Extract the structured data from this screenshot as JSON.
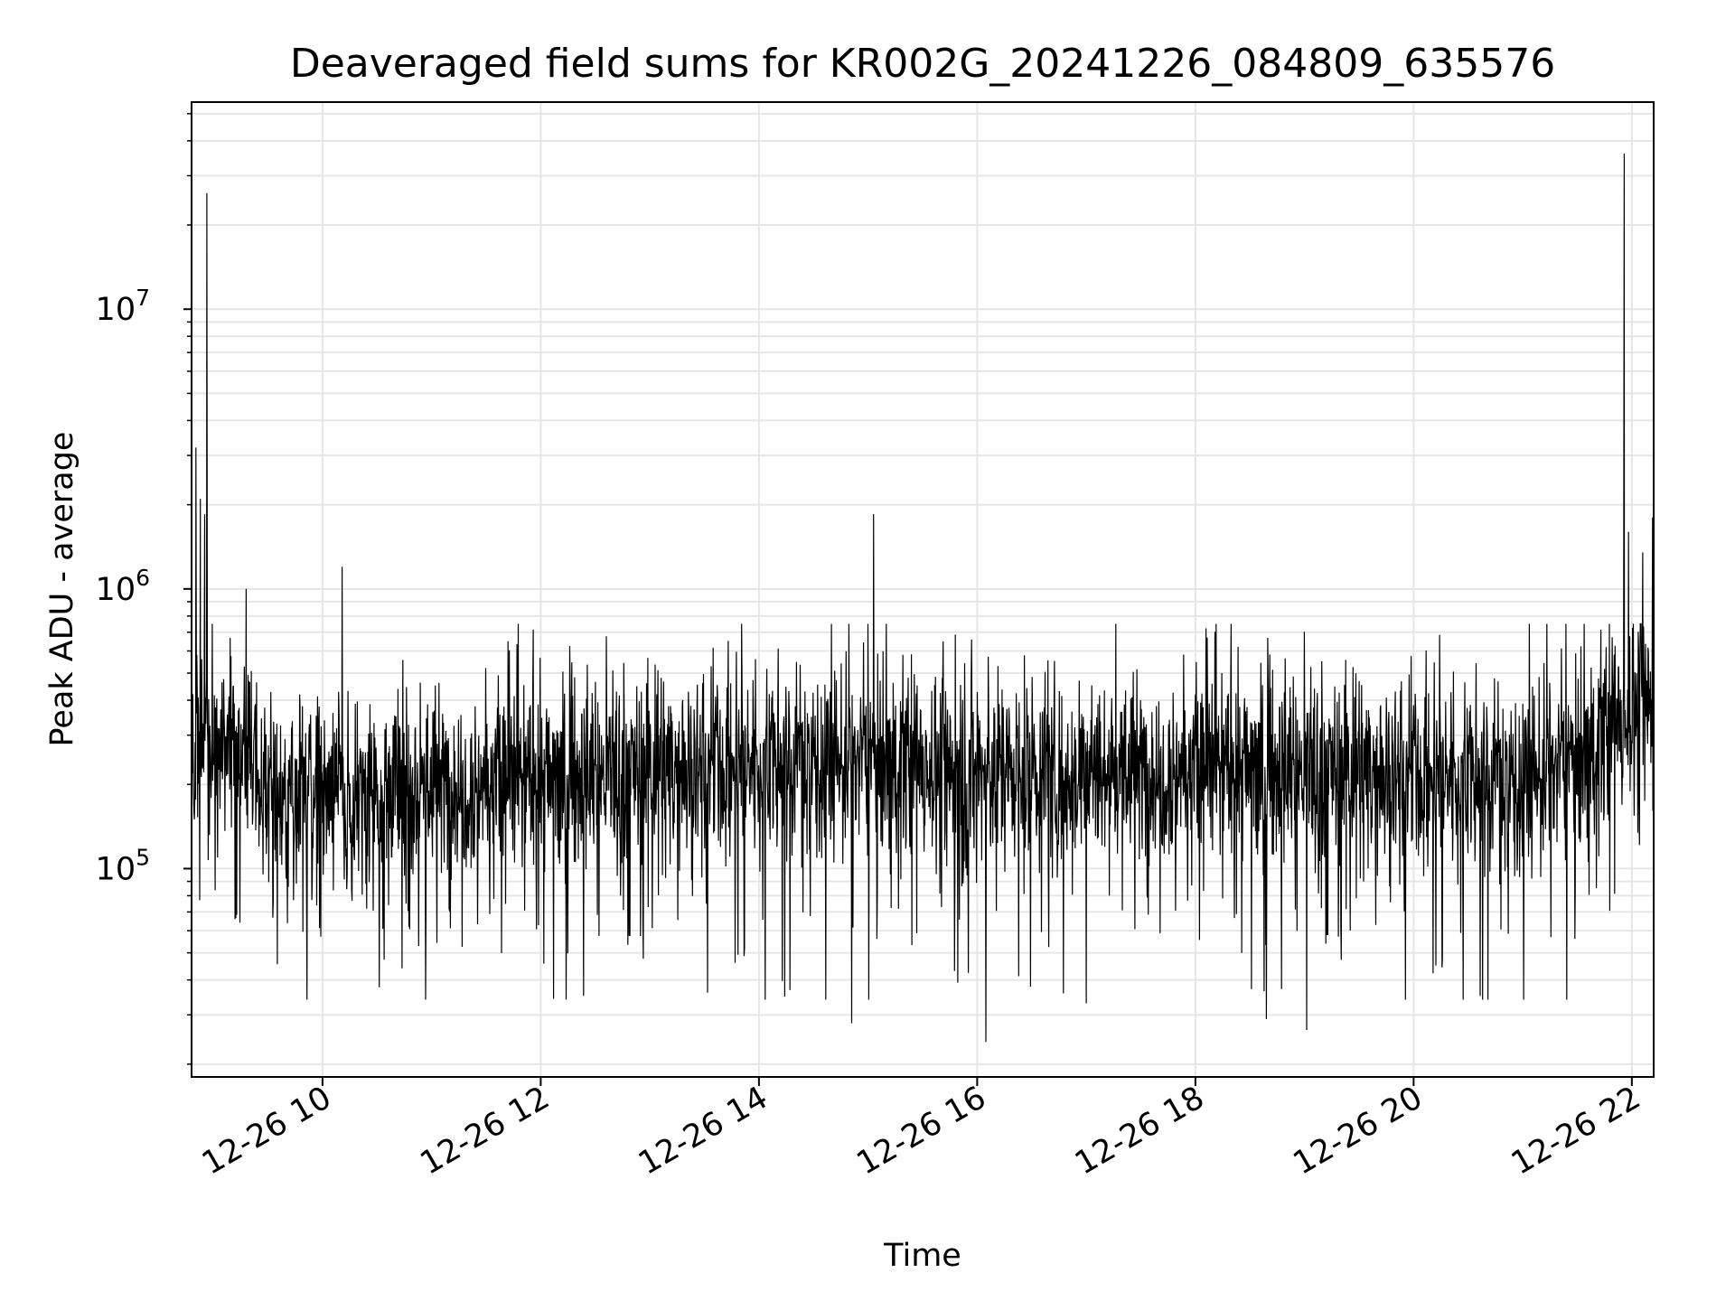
{
  "chart_data": {
    "type": "line",
    "title": "Deaveraged field sums for KR002G_20241226_084809_635576",
    "xlabel": "Time",
    "ylabel": "Peak ADU - average",
    "x_tick_labels": [
      "12-26 10",
      "12-26 12",
      "12-26 14",
      "12-26 16",
      "12-26 18",
      "12-26 20",
      "12-26 22"
    ],
    "x_ticks_hours": [
      10,
      12,
      14,
      16,
      18,
      20,
      22
    ],
    "xlim_hours": [
      8.8,
      22.2
    ],
    "y_scale": "log",
    "ylim": [
      18000,
      55000000
    ],
    "y_tick_values": [
      100000,
      1000000,
      10000000
    ],
    "y_tick_labels": [
      {
        "base": "10",
        "exp": "5"
      },
      {
        "base": "10",
        "exp": "6"
      },
      {
        "base": "10",
        "exp": "7"
      }
    ],
    "grid": true,
    "line_color": "#000000",
    "grid_color": "#e6e6e6",
    "anchor_points": [
      {
        "x": 8.8,
        "y": 250000
      },
      {
        "x": 9.2,
        "y": 280000
      },
      {
        "x": 9.5,
        "y": 190000
      },
      {
        "x": 10.0,
        "y": 190000
      },
      {
        "x": 11.0,
        "y": 200000
      },
      {
        "x": 12.0,
        "y": 210000
      },
      {
        "x": 13.0,
        "y": 230000
      },
      {
        "x": 14.0,
        "y": 240000
      },
      {
        "x": 15.0,
        "y": 250000
      },
      {
        "x": 16.0,
        "y": 230000
      },
      {
        "x": 17.0,
        "y": 220000
      },
      {
        "x": 18.0,
        "y": 230000
      },
      {
        "x": 19.0,
        "y": 230000
      },
      {
        "x": 20.0,
        "y": 220000
      },
      {
        "x": 21.0,
        "y": 210000
      },
      {
        "x": 21.5,
        "y": 250000
      },
      {
        "x": 22.0,
        "y": 380000
      },
      {
        "x": 22.2,
        "y": 420000
      }
    ],
    "peaks": [
      {
        "x": 8.84,
        "y": 3200000
      },
      {
        "x": 8.88,
        "y": 2100000
      },
      {
        "x": 8.92,
        "y": 1850000
      },
      {
        "x": 8.94,
        "y": 26000000
      },
      {
        "x": 9.3,
        "y": 1000000
      },
      {
        "x": 10.18,
        "y": 1200000
      },
      {
        "x": 15.05,
        "y": 1850000
      },
      {
        "x": 21.93,
        "y": 36000000
      },
      {
        "x": 21.97,
        "y": 1600000
      },
      {
        "x": 22.1,
        "y": 1350000
      },
      {
        "x": 22.19,
        "y": 1800000
      }
    ],
    "troughs": [
      {
        "x": 14.85,
        "y": 28000
      },
      {
        "x": 16.08,
        "y": 24000
      },
      {
        "x": 17.0,
        "y": 33000
      },
      {
        "x": 18.65,
        "y": 29000
      },
      {
        "x": 19.02,
        "y": 26500
      }
    ]
  }
}
